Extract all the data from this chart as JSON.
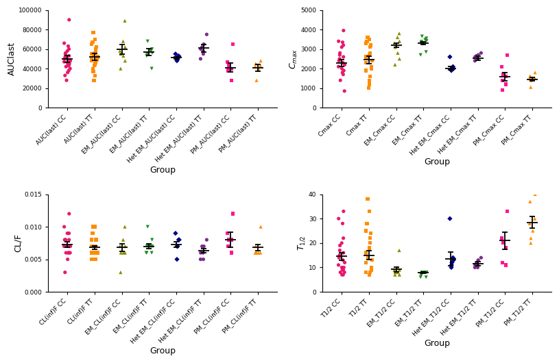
{
  "auc_groups": [
    "AUC(last) CC",
    "AUC(last) TT",
    "EM_AUC(last) CC",
    "EM_AUC(last) TT",
    "Het EM_AUC(last) CC",
    "Het EM_AUC(last) TT",
    "PM_AUC(last) CC",
    "PM_AUC(last) TT"
  ],
  "auc_colors": [
    "#E8186E",
    "#FF8C00",
    "#8B8B00",
    "#228B22",
    "#00008B",
    "#7B2D8B",
    "#FF1493",
    "#FF8C00"
  ],
  "auc_markers": [
    "o",
    "s",
    "^",
    "v",
    "D",
    "o",
    "s",
    "^"
  ],
  "auc_data": [
    [
      90000,
      66000,
      63000,
      60000,
      58000,
      56000,
      55000,
      53000,
      52000,
      50000,
      49000,
      48000,
      47000,
      46000,
      45000,
      44000,
      43000,
      42000,
      40000,
      38000,
      36000,
      33000,
      28000
    ],
    [
      77000,
      70000,
      67000,
      65000,
      62000,
      60000,
      58000,
      56000,
      55000,
      54000,
      52000,
      51000,
      50000,
      49000,
      48000,
      46000,
      45000,
      44000,
      43000,
      40000,
      37000,
      33000,
      28000
    ],
    [
      89000,
      68000,
      62000,
      58000,
      55000,
      53000,
      48000,
      40000
    ],
    [
      68000,
      60000,
      58000,
      56000,
      55000,
      53000,
      40000
    ],
    [
      55000,
      53000,
      52000,
      50000,
      49000,
      48000
    ],
    [
      75000,
      65000,
      62000,
      60000,
      58000,
      55000,
      50000
    ],
    [
      65000,
      47000,
      43000,
      40000,
      38000,
      28000
    ],
    [
      48000,
      45000,
      43000,
      42000,
      40000,
      28000
    ]
  ],
  "auc_means": [
    50000,
    52000,
    60000,
    57000,
    51000,
    61000,
    41000,
    41000
  ],
  "auc_sems": [
    3500,
    3500,
    5000,
    3500,
    1200,
    4000,
    4500,
    3500
  ],
  "auc_ylabel": "AUClast",
  "auc_ylim": [
    0,
    100000
  ],
  "auc_yticks": [
    0,
    20000,
    40000,
    60000,
    80000,
    100000
  ],
  "cmax_groups": [
    "Cmax CC",
    "Cmax TT",
    "EM_Cmax CC",
    "EM_Cmax TT",
    "Het EM_Cmax CC",
    "Het EM_Cmax TT",
    "PM_Cmax CC",
    "PM_Cmax TT"
  ],
  "cmax_colors": [
    "#E8186E",
    "#FF8C00",
    "#8B8B00",
    "#228B22",
    "#00008B",
    "#7B2D8B",
    "#FF1493",
    "#FF8C00"
  ],
  "cmax_markers": [
    "o",
    "s",
    "^",
    "v",
    "D",
    "o",
    "s",
    "^"
  ],
  "cmax_data": [
    [
      3950,
      3400,
      3350,
      3200,
      3100,
      2800,
      2700,
      2600,
      2500,
      2400,
      2300,
      2200,
      2100,
      2000,
      1900,
      1800,
      1700,
      1400,
      850
    ],
    [
      3600,
      3500,
      3400,
      3300,
      3200,
      3100,
      2800,
      2700,
      2600,
      2500,
      2400,
      2300,
      2100,
      2000,
      1900,
      1600,
      1400,
      1200,
      1000
    ],
    [
      3800,
      3600,
      3400,
      3300,
      3100,
      2800,
      2500,
      2200
    ],
    [
      3650,
      3550,
      3480,
      3420,
      3380,
      3320,
      2850,
      2700
    ],
    [
      2600,
      2100,
      2000,
      2000,
      1950,
      1900
    ],
    [
      2800,
      2700,
      2650,
      2600,
      2550,
      2500,
      2400
    ],
    [
      2700,
      2100,
      1700,
      1600,
      1400,
      1200,
      900
    ],
    [
      1800,
      1620,
      1520,
      1490,
      1450,
      1400,
      1050
    ]
  ],
  "cmax_means": [
    2280,
    2450,
    3200,
    3320,
    2020,
    2530,
    1580,
    1460
  ],
  "cmax_sems": [
    180,
    200,
    120,
    70,
    80,
    100,
    200,
    80
  ],
  "cmax_ylabel": "$C_{max}$",
  "cmax_ylim": [
    0,
    5000
  ],
  "cmax_yticks": [
    0,
    1000,
    2000,
    3000,
    4000,
    5000
  ],
  "clf_groups": [
    "CL(inf)F CC",
    "CL(inf)F TT",
    "EM_CL(inf)F CC",
    "EM_CL(inf)F TT",
    "Het EM_CL(inf)F CC",
    "Het EM_CL(inf)F TT",
    "PM_CL(inf)F CC",
    "PM_CL(inf)F TT"
  ],
  "clf_colors": [
    "#E8186E",
    "#FF8C00",
    "#8B8B00",
    "#228B22",
    "#00008B",
    "#7B2D8B",
    "#FF1493",
    "#FF8C00"
  ],
  "clf_markers": [
    "o",
    "s",
    "^",
    "v",
    "D",
    "o",
    "s",
    "^"
  ],
  "clf_data": [
    [
      0.012,
      0.01,
      0.009,
      0.009,
      0.009,
      0.008,
      0.008,
      0.008,
      0.008,
      0.008,
      0.007,
      0.007,
      0.007,
      0.007,
      0.007,
      0.006,
      0.006,
      0.006,
      0.006,
      0.006,
      0.005,
      0.003
    ],
    [
      0.01,
      0.01,
      0.009,
      0.008,
      0.008,
      0.008,
      0.007,
      0.007,
      0.007,
      0.006,
      0.006,
      0.006,
      0.006,
      0.006,
      0.005,
      0.005,
      0.005,
      0.005
    ],
    [
      0.01,
      0.008,
      0.007,
      0.007,
      0.006,
      0.006,
      0.006,
      0.003
    ],
    [
      0.01,
      0.008,
      0.007,
      0.007,
      0.007,
      0.006,
      0.006,
      0.006
    ],
    [
      0.009,
      0.008,
      0.008,
      0.007,
      0.007,
      0.005
    ],
    [
      0.008,
      0.007,
      0.007,
      0.006,
      0.006,
      0.005,
      0.005
    ],
    [
      0.012,
      0.009,
      0.008,
      0.008,
      0.007,
      0.006
    ],
    [
      0.01,
      0.007,
      0.006,
      0.006,
      0.006,
      0.006,
      0.006
    ]
  ],
  "clf_means": [
    0.0073,
    0.0068,
    0.0068,
    0.007,
    0.0073,
    0.0063,
    0.008,
    0.0068
  ],
  "clf_sems": [
    0.0004,
    0.0003,
    0.0006,
    0.0004,
    0.0004,
    0.0003,
    0.0012,
    0.0005
  ],
  "clf_ylabel": "CL/F",
  "clf_ylim": [
    0,
    0.015
  ],
  "clf_yticks": [
    0.0,
    0.005,
    0.01,
    0.015
  ],
  "t12_groups": [
    "T1/2 CC",
    "T1/2 TT",
    "EM_T1/2 CC",
    "EM_T1/2 TT",
    "Het EM_T1/2 CC",
    "Het EM_T1/2 TT",
    "PM_T1/2 CC",
    "PM_T1/2 TT"
  ],
  "t12_colors": [
    "#E8186E",
    "#FF8C00",
    "#8B8B00",
    "#228B22",
    "#00008B",
    "#7B2D8B",
    "#FF1493",
    "#FF8C00"
  ],
  "t12_markers": [
    "o",
    "s",
    "^",
    "v",
    "D",
    "o",
    "s",
    "^"
  ],
  "t12_data": [
    [
      33,
      30,
      28,
      22,
      20,
      19,
      17,
      16,
      15,
      14,
      13,
      12,
      11,
      10,
      10,
      9,
      9,
      8,
      8,
      7,
      7
    ],
    [
      38,
      33,
      28,
      25,
      24,
      22,
      20,
      18,
      16,
      14,
      13,
      12,
      10,
      9,
      8,
      8,
      7,
      7
    ],
    [
      17,
      10,
      9,
      9,
      8,
      8,
      7,
      7
    ],
    [
      8,
      8,
      8,
      8,
      7,
      7,
      6,
      6
    ],
    [
      30,
      14,
      13,
      12,
      11,
      10
    ],
    [
      14,
      13,
      12,
      11,
      11,
      10,
      10
    ],
    [
      33,
      22,
      20,
      18,
      12,
      11
    ],
    [
      40,
      37,
      30,
      28,
      25,
      22,
      20
    ]
  ],
  "t12_means": [
    14.5,
    15.0,
    9.2,
    7.8,
    13.5,
    11.5,
    21.0,
    28.5
  ],
  "t12_sems": [
    1.5,
    1.8,
    1.0,
    0.3,
    2.8,
    0.8,
    3.5,
    2.5
  ],
  "t12_ylabel": "$T_{1/2}$",
  "t12_ylim": [
    0,
    40
  ],
  "t12_yticks": [
    0,
    10,
    20,
    30,
    40
  ],
  "xlabel": "Group",
  "background_color": "#ffffff",
  "fontsize_ylabel": 9,
  "fontsize_xlabel": 8,
  "fontsize_ticks": 6.5
}
